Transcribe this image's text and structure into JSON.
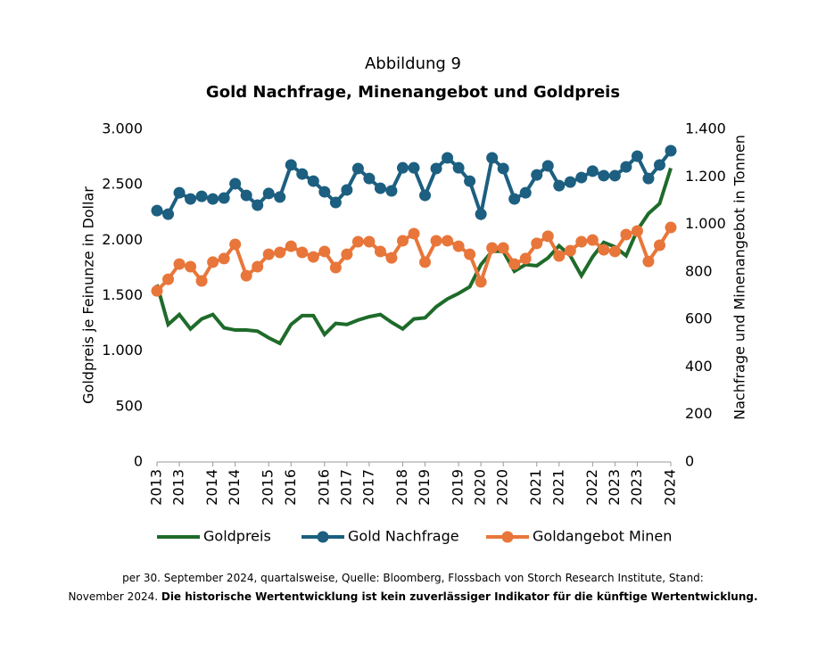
{
  "chart_data": {
    "type": "line",
    "figure_label": "Abbildung 9",
    "title": "Gold Nachfrage, Minenangebot und Goldpreis",
    "y_label": "Goldpreis je Feinunze in Dollar",
    "y2_label": "Nachfrage und Minenangebot in Tonnen",
    "categories": [
      "2013",
      null,
      "2013",
      null,
      null,
      "2014",
      null,
      "2014",
      null,
      null,
      "2015",
      null,
      "2016",
      null,
      null,
      "2016",
      null,
      "2017",
      null,
      "2017",
      null,
      null,
      "2018",
      null,
      "2019",
      null,
      null,
      "2019",
      null,
      "2020",
      null,
      "2020",
      null,
      null,
      "2021",
      null,
      "2021",
      null,
      null,
      "2022",
      null,
      "2023",
      null,
      "2023",
      null,
      null,
      "2024"
    ],
    "ylim": [
      0,
      3000
    ],
    "yticks": [
      0,
      500,
      {
        "value": 1000,
        "label": "1.000"
      },
      {
        "value": 1500,
        "label": "1.500"
      },
      {
        "value": 2000,
        "label": "2.000"
      },
      {
        "value": 2500,
        "label": "2.500"
      },
      {
        "value": 3000,
        "label": "3.000"
      }
    ],
    "y2lim": [
      0,
      1400
    ],
    "y2ticks": [
      0,
      200,
      400,
      600,
      800,
      {
        "value": 1000,
        "label": "1.000"
      },
      {
        "value": 1200,
        "label": "1.200"
      },
      {
        "value": 1400,
        "label": "1.400"
      }
    ],
    "legend": "bottom",
    "series": [
      {
        "name": "Goldpreis",
        "color": "#1e6b2a",
        "markers": false,
        "values": [
          1600,
          1240,
          1330,
          1200,
          1290,
          1330,
          1210,
          1190,
          1190,
          1180,
          1120,
          1070,
          1240,
          1320,
          1320,
          1150,
          1250,
          1240,
          1280,
          1310,
          1330,
          1260,
          1200,
          1290,
          1300,
          1400,
          1470,
          1520,
          1580,
          1780,
          1900,
          1900,
          1720,
          1780,
          1770,
          1840,
          1950,
          1860,
          1680,
          1850,
          1980,
          1940,
          1860,
          2090,
          2240,
          2330,
          2650
        ]
      },
      {
        "name": "Gold Nachfrage",
        "color": "#1c5f80",
        "markers": true,
        "axis": "y2",
        "values": [
          1058,
          1043,
          1133,
          1107,
          1118,
          1107,
          1111,
          1171,
          1122,
          1081,
          1130,
          1115,
          1250,
          1212,
          1182,
          1137,
          1092,
          1145,
          1235,
          1193,
          1152,
          1141,
          1238,
          1238,
          1122,
          1235,
          1280,
          1238,
          1182,
          1043,
          1280,
          1235,
          1107,
          1133,
          1208,
          1246,
          1163,
          1178,
          1197,
          1224,
          1205,
          1205,
          1242,
          1287,
          1193,
          1250,
          1310
        ]
      },
      {
        "name": "Goldangebot Minen",
        "color": "#e8763a",
        "markers": true,
        "axis": "y2",
        "values": [
          720,
          769,
          833,
          822,
          762,
          841,
          856,
          916,
          784,
          822,
          874,
          882,
          908,
          882,
          863,
          886,
          818,
          874,
          927,
          927,
          886,
          859,
          931,
          961,
          841,
          931,
          931,
          908,
          874,
          758,
          901,
          901,
          833,
          856,
          920,
          950,
          867,
          889,
          927,
          934,
          893,
          886,
          957,
          972,
          844,
          912,
          987
        ]
      }
    ],
    "note_line1": "per 30. September 2024, quartalsweise, Quelle: Bloomberg, Flossbach von Storch Research Institute, Stand:",
    "note_line2": "November 2024.",
    "disclaimer": "Die historische Wertentwicklung ist kein zuverlässiger Indikator für die künftige Wertentwicklung."
  }
}
